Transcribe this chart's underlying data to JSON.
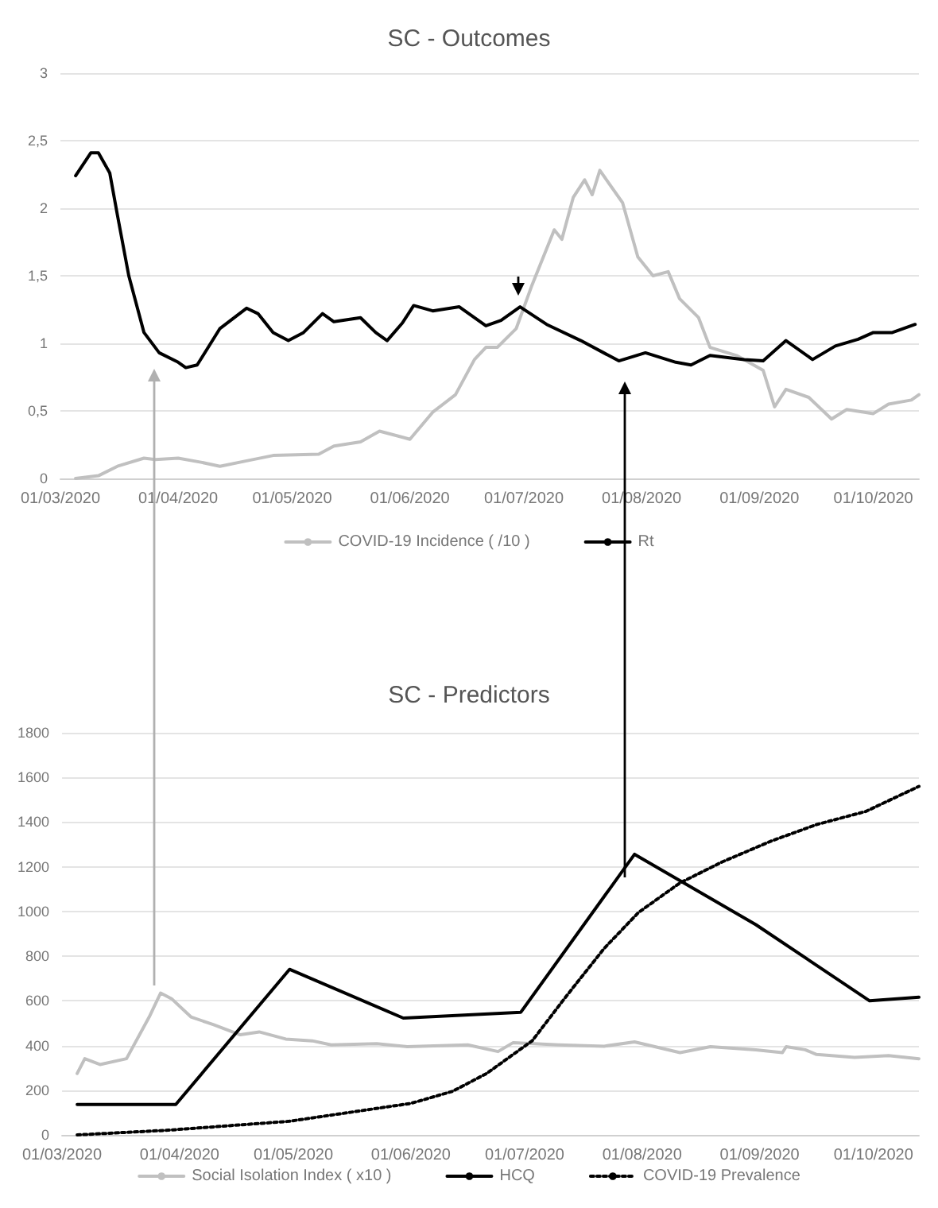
{
  "chart_data": [
    {
      "type": "line",
      "title": "SC - Outcomes",
      "xlim": [
        "2020-03-01",
        "2020-10-13"
      ],
      "xticks": [
        {
          "value": "2020-03-01",
          "label": "01/03/2020"
        },
        {
          "value": "2020-04-01",
          "label": "01/04/2020"
        },
        {
          "value": "2020-05-01",
          "label": "01/05/2020"
        },
        {
          "value": "2020-06-01",
          "label": "01/06/2020"
        },
        {
          "value": "2020-07-01",
          "label": "01/07/2020"
        },
        {
          "value": "2020-08-01",
          "label": "01/08/2020"
        },
        {
          "value": "2020-09-01",
          "label": "01/09/2020"
        },
        {
          "value": "2020-10-01",
          "label": "01/10/2020"
        }
      ],
      "ylim": [
        0,
        3
      ],
      "yticks": [
        0,
        {
          "value": 0.5,
          "label": "0,5"
        },
        1,
        {
          "value": 1.5,
          "label": "1,5"
        },
        2,
        {
          "value": 2.5,
          "label": "2,5"
        },
        3
      ],
      "grid": "y",
      "legend": "bottom",
      "marker": "none",
      "series": [
        {
          "name": "COVID-19 Incidence ( /10 )",
          "color": "#c0c0c0",
          "x": [
            "2020-03-05",
            "2020-03-11",
            "2020-03-16",
            "2020-03-23",
            "2020-03-26",
            "2020-04-01",
            "2020-04-07",
            "2020-04-12",
            "2020-04-19",
            "2020-04-26",
            "2020-05-08",
            "2020-05-12",
            "2020-05-19",
            "2020-05-24",
            "2020-06-01",
            "2020-06-07",
            "2020-06-13",
            "2020-06-18",
            "2020-06-21",
            "2020-06-24",
            "2020-06-29",
            "2020-07-03",
            "2020-07-09",
            "2020-07-11",
            "2020-07-14",
            "2020-07-17",
            "2020-07-19",
            "2020-07-21",
            "2020-07-27",
            "2020-07-31",
            "2020-08-04",
            "2020-08-08",
            "2020-08-11",
            "2020-08-16",
            "2020-08-19",
            "2020-08-26",
            "2020-09-02",
            "2020-09-05",
            "2020-09-08",
            "2020-09-14",
            "2020-09-20",
            "2020-09-24",
            "2020-10-01",
            "2020-10-05",
            "2020-10-11",
            "2020-10-13"
          ],
          "values": [
            0,
            0.02,
            0.09,
            0.15,
            0.14,
            0.15,
            0.12,
            0.09,
            0.13,
            0.17,
            0.18,
            0.24,
            0.27,
            0.35,
            0.29,
            0.49,
            0.62,
            0.88,
            0.97,
            0.97,
            1.11,
            1.42,
            1.84,
            1.77,
            2.08,
            2.21,
            2.1,
            2.28,
            2.04,
            1.64,
            1.5,
            1.53,
            1.33,
            1.19,
            0.97,
            0.91,
            0.8,
            0.53,
            0.66,
            0.6,
            0.44,
            0.51,
            0.48,
            0.55,
            0.58,
            0.62
          ]
        },
        {
          "name": "Rt",
          "color": "#000000",
          "x": [
            "2020-03-05",
            "2020-03-09",
            "2020-03-11",
            "2020-03-14",
            "2020-03-16",
            "2020-03-19",
            "2020-03-23",
            "2020-03-27",
            "2020-04-01",
            "2020-04-03",
            "2020-04-06",
            "2020-04-12",
            "2020-04-19",
            "2020-04-22",
            "2020-04-26",
            "2020-04-30",
            "2020-05-04",
            "2020-05-09",
            "2020-05-12",
            "2020-05-19",
            "2020-05-23",
            "2020-05-26",
            "2020-05-30",
            "2020-06-02",
            "2020-06-07",
            "2020-06-14",
            "2020-06-21",
            "2020-06-25",
            "2020-06-30",
            "2020-07-07",
            "2020-07-16",
            "2020-07-26",
            "2020-08-02",
            "2020-08-10",
            "2020-08-14",
            "2020-08-19",
            "2020-08-28",
            "2020-09-02",
            "2020-09-08",
            "2020-09-15",
            "2020-09-21",
            "2020-09-27",
            "2020-10-01",
            "2020-10-06",
            "2020-10-12"
          ],
          "values": [
            2.24,
            2.41,
            2.41,
            2.26,
            1.95,
            1.5,
            1.08,
            0.93,
            0.86,
            0.82,
            0.84,
            1.11,
            1.26,
            1.22,
            1.08,
            1.02,
            1.08,
            1.22,
            1.16,
            1.19,
            1.08,
            1.02,
            1.15,
            1.28,
            1.24,
            1.27,
            1.13,
            1.17,
            1.27,
            1.14,
            1.02,
            0.87,
            0.93,
            0.86,
            0.84,
            0.91,
            0.88,
            0.87,
            1.02,
            0.88,
            0.98,
            1.03,
            1.08,
            1.08,
            1.14
          ]
        }
      ]
    },
    {
      "type": "line",
      "title": "SC - Predictors",
      "xlim": [
        "2020-03-01",
        "2020-10-13"
      ],
      "xticks": [
        {
          "value": "2020-03-01",
          "label": "01/03/2020"
        },
        {
          "value": "2020-04-01",
          "label": "01/04/2020"
        },
        {
          "value": "2020-05-01",
          "label": "01/05/2020"
        },
        {
          "value": "2020-06-01",
          "label": "01/06/2020"
        },
        {
          "value": "2020-07-01",
          "label": "01/07/2020"
        },
        {
          "value": "2020-08-01",
          "label": "01/08/2020"
        },
        {
          "value": "2020-09-01",
          "label": "01/09/2020"
        },
        {
          "value": "2020-10-01",
          "label": "01/10/2020"
        }
      ],
      "ylim": [
        0,
        1800
      ],
      "yticks": [
        0,
        200,
        400,
        600,
        800,
        1000,
        1200,
        1400,
        1600,
        1800
      ],
      "grid": "y",
      "legend": "bottom",
      "marker": "none",
      "series": [
        {
          "name": "Social Isolation Index ( x10 )",
          "color": "#c0c0c0",
          "x": [
            "2020-03-05",
            "2020-03-07",
            "2020-03-11",
            "2020-03-18",
            "2020-03-24",
            "2020-03-27",
            "2020-03-30",
            "2020-04-04",
            "2020-04-10",
            "2020-04-17",
            "2020-04-22",
            "2020-04-29",
            "2020-05-06",
            "2020-05-11",
            "2020-05-23",
            "2020-05-31",
            "2020-06-16",
            "2020-06-24",
            "2020-06-28",
            "2020-07-10",
            "2020-07-22",
            "2020-07-30",
            "2020-08-11",
            "2020-08-19",
            "2020-08-31",
            "2020-09-07",
            "2020-09-08",
            "2020-09-13",
            "2020-09-16",
            "2020-09-26",
            "2020-10-05",
            "2020-10-13"
          ],
          "values": [
            275,
            341,
            315,
            341,
            528,
            635,
            608,
            528,
            493,
            448,
            461,
            429,
            421,
            403,
            408,
            395,
            403,
            373,
            413,
            403,
            397,
            416,
            368,
            395,
            381,
            368,
            395,
            381,
            360,
            347,
            355,
            341
          ]
        },
        {
          "name": "HCQ",
          "color": "#000000",
          "x": [
            "2020-03-05",
            "2020-03-31",
            "2020-04-30",
            "2020-05-30",
            "2020-06-30",
            "2020-07-30",
            "2020-08-31",
            "2020-09-30",
            "2020-10-13"
          ],
          "values": [
            136,
            136,
            741,
            523,
            549,
            1256,
            941,
            600,
            616
          ]
        },
        {
          "name": "COVID-19 Prevalence",
          "color": "#000000",
          "line_style": "dotted",
          "x": [
            "2020-03-05",
            "2020-03-29",
            "2020-04-30",
            "2020-05-16",
            "2020-06-01",
            "2020-06-12",
            "2020-06-21",
            "2020-07-03",
            "2020-07-12",
            "2020-07-22",
            "2020-07-31",
            "2020-08-11",
            "2020-08-22",
            "2020-09-04",
            "2020-09-16",
            "2020-09-29",
            "2020-10-13"
          ],
          "values": [
            0,
            21,
            61,
            101,
            141,
            195,
            275,
            421,
            621,
            835,
            995,
            1128,
            1221,
            1315,
            1389,
            1448,
            1560
          ]
        }
      ]
    }
  ]
}
